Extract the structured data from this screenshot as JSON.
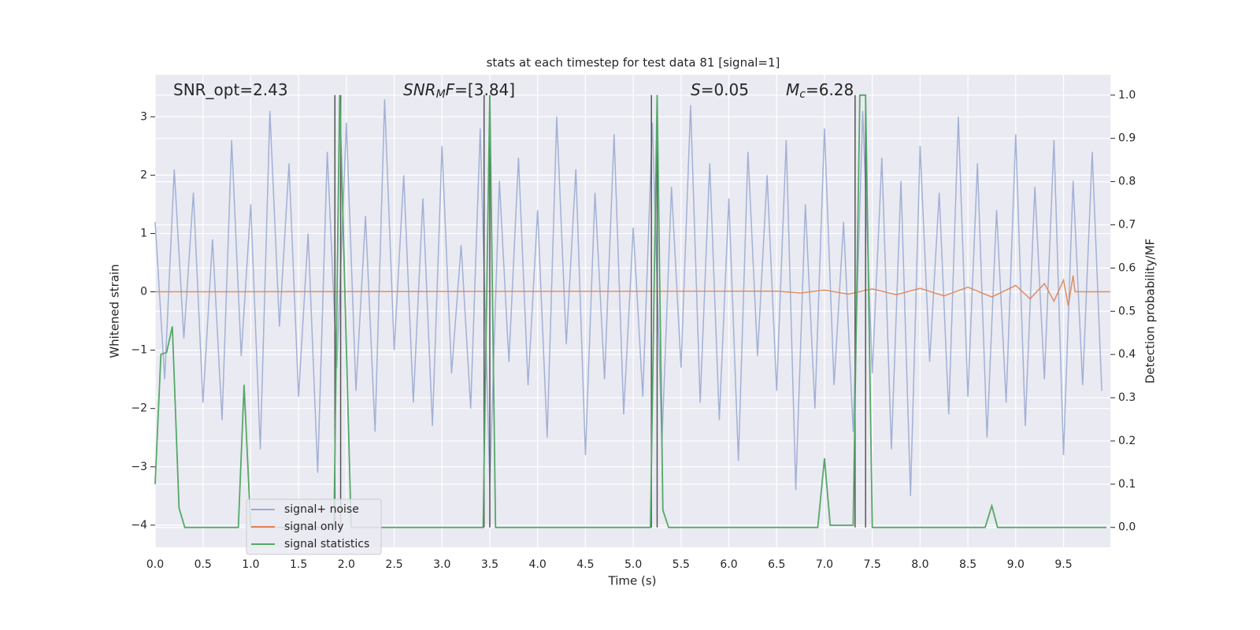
{
  "chart_data": {
    "type": "line",
    "title": "stats at each timestep for test data 81 [signal=1]",
    "xlabel": "Time (s)",
    "ylabel": "Whitened strain",
    "y2label": "Detection probability/MF",
    "xlim": [
      0,
      9.99
    ],
    "ylim": [
      -4.38,
      3.72
    ],
    "y2lim": [
      -0.046,
      1.047
    ],
    "grid": true,
    "legend_loc": "lower left",
    "xticks": [
      {
        "value": 0,
        "label": "0.0"
      },
      0.5,
      {
        "value": 1,
        "label": "1.0"
      },
      1.5,
      {
        "value": 2,
        "label": "2.0"
      },
      2.5,
      {
        "value": 3,
        "label": "3.0"
      },
      3.5,
      {
        "value": 4,
        "label": "4.0"
      },
      4.5,
      {
        "value": 5,
        "label": "5.0"
      },
      5.5,
      {
        "value": 6,
        "label": "6.0"
      },
      6.5,
      {
        "value": 7,
        "label": "7.0"
      },
      7.5,
      {
        "value": 8,
        "label": "8.0"
      },
      8.5,
      {
        "value": 9,
        "label": "9.0"
      },
      9.5
    ],
    "yticks": [
      {
        "value": -4,
        "label": "−4"
      },
      {
        "value": -3,
        "label": "−3"
      },
      {
        "value": -2,
        "label": "−2"
      },
      {
        "value": -1,
        "label": "−1"
      },
      0,
      1,
      2,
      3
    ],
    "y2ticks": [
      {
        "value": 0,
        "label": "0.0"
      },
      0.1,
      0.2,
      0.3,
      0.4,
      0.5,
      0.6,
      0.7,
      0.8,
      0.9,
      {
        "value": 1,
        "label": "1.0"
      }
    ],
    "annotations": [
      [
        {
          "text": "SNR_opt=2.43",
          "style": "normal"
        }
      ],
      [
        {
          "text": "SNR",
          "style": "italic"
        },
        {
          "text": "M",
          "style": "sub"
        },
        {
          "text": "F",
          "style": "italic"
        },
        {
          "text": "=[3.84]",
          "style": "normal"
        }
      ],
      [
        {
          "text": "S",
          "style": "italic"
        },
        {
          "text": "=0.05",
          "style": "normal"
        }
      ],
      [
        {
          "text": "M",
          "style": "italic"
        },
        {
          "text": "c",
          "style": "sub"
        },
        {
          "text": "=6.28",
          "style": "normal"
        }
      ]
    ],
    "markers": {
      "color": "#555555",
      "x": [
        1.88,
        1.94,
        3.44,
        3.5,
        5.19,
        5.25,
        7.32,
        7.43
      ]
    },
    "series": [
      {
        "name": "signal+ noise",
        "color": "#9aabd1",
        "x": [
          0,
          0.1,
          0.2,
          0.3,
          0.4,
          0.5,
          0.6,
          0.7,
          0.8,
          0.9,
          1,
          1.1,
          1.2,
          1.3,
          1.4,
          1.5,
          1.6,
          1.7,
          1.8,
          1.9,
          2,
          2.1,
          2.2,
          2.3,
          2.4,
          2.5,
          2.6,
          2.7,
          2.8,
          2.9,
          3,
          3.1,
          3.2,
          3.3,
          3.4,
          3.5,
          3.6,
          3.7,
          3.8,
          3.9,
          4,
          4.1,
          4.2,
          4.3,
          4.4,
          4.5,
          4.6,
          4.7,
          4.8,
          4.9,
          5,
          5.1,
          5.2,
          5.3,
          5.4,
          5.5,
          5.6,
          5.7,
          5.8,
          5.9,
          6,
          6.1,
          6.2,
          6.3,
          6.4,
          6.5,
          6.6,
          6.7,
          6.8,
          6.9,
          7,
          7.1,
          7.2,
          7.3,
          7.4,
          7.5,
          7.6,
          7.7,
          7.8,
          7.9,
          8,
          8.1,
          8.2,
          8.3,
          8.4,
          8.5,
          8.6,
          8.7,
          8.8,
          8.9,
          9,
          9.1,
          9.2,
          9.3,
          9.4,
          9.5,
          9.6,
          9.7,
          9.8,
          9.9
        ],
        "values": [
          1.2,
          -1.5,
          2.1,
          -0.8,
          1.7,
          -1.9,
          0.9,
          -2.2,
          2.6,
          -1.1,
          1.5,
          -2.7,
          3.1,
          -0.6,
          2.2,
          -1.8,
          1.0,
          -3.1,
          2.4,
          -1.3,
          2.9,
          -1.7,
          1.3,
          -2.4,
          3.3,
          -1.0,
          2.0,
          -1.9,
          1.6,
          -2.3,
          2.5,
          -1.4,
          0.8,
          -2.0,
          2.8,
          -3.3,
          1.9,
          -1.2,
          2.3,
          -1.6,
          1.4,
          -2.5,
          3.0,
          -0.9,
          2.1,
          -2.8,
          1.7,
          -1.5,
          2.7,
          -2.1,
          1.1,
          -1.8,
          2.9,
          -2.6,
          1.8,
          -1.3,
          3.2,
          -1.9,
          2.2,
          -2.2,
          1.6,
          -2.9,
          2.4,
          -1.1,
          2.0,
          -1.7,
          2.6,
          -3.4,
          1.5,
          -2.0,
          2.8,
          -1.6,
          1.2,
          -2.4,
          3.1,
          -1.4,
          2.3,
          -2.7,
          1.9,
          -3.5,
          2.5,
          -1.2,
          1.7,
          -2.1,
          3.0,
          -1.8,
          2.2,
          -2.5,
          1.4,
          -1.9,
          2.7,
          -2.3,
          1.8,
          -1.5,
          2.6,
          -2.8,
          1.9,
          -1.6,
          2.4,
          -1.7
        ]
      },
      {
        "name": "signal only",
        "color": "#dd8452",
        "x": [
          0,
          6.5,
          6.75,
          7.0,
          7.25,
          7.5,
          7.75,
          8.0,
          8.25,
          8.5,
          8.75,
          9.0,
          9.15,
          9.3,
          9.4,
          9.5,
          9.55,
          9.6,
          9.62,
          9.99
        ],
        "values": [
          0,
          0.01,
          -0.02,
          0.03,
          -0.04,
          0.05,
          -0.05,
          0.06,
          -0.07,
          0.08,
          -0.09,
          0.11,
          -0.12,
          0.14,
          -0.16,
          0.2,
          -0.24,
          0.28,
          0,
          0
        ]
      },
      {
        "name": "signal statistics",
        "color": "#55a868",
        "axis": "y2",
        "x": [
          0,
          0.06,
          0.12,
          0.18,
          0.25,
          0.31,
          0.87,
          0.93,
          1.0,
          1.87,
          1.93,
          2.05,
          3.43,
          3.5,
          3.56,
          5.18,
          5.25,
          5.31,
          5.37,
          6.93,
          7.0,
          7.06,
          7.3,
          7.37,
          7.43,
          7.5,
          8.68,
          8.75,
          8.81,
          9.95
        ],
        "values": [
          0.1,
          0.4,
          0.405,
          0.465,
          0.045,
          0,
          0,
          0.33,
          0,
          0,
          1.0,
          0,
          0,
          1.0,
          0,
          0,
          1.0,
          0.04,
          0,
          0,
          0.16,
          0.005,
          0.005,
          1.0,
          1.0,
          0,
          0,
          0.05,
          0,
          0
        ]
      }
    ]
  }
}
